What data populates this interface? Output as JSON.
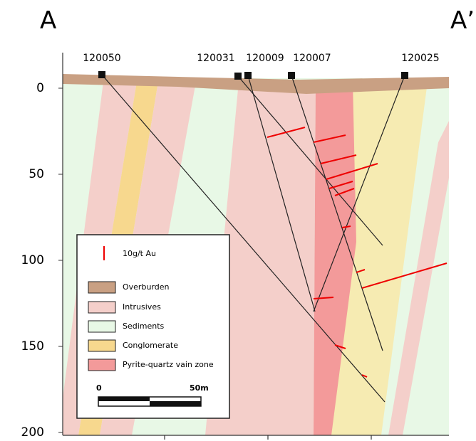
{
  "section": {
    "left_label": "A",
    "right_label": "A’"
  },
  "depth_axis": {
    "ticks": [
      "0",
      "50",
      "100",
      "150",
      "200"
    ]
  },
  "drill_holes": [
    {
      "name": "120050"
    },
    {
      "name": "120031"
    },
    {
      "name": "120009"
    },
    {
      "name": "120007"
    },
    {
      "name": "120025"
    }
  ],
  "legend": {
    "assay": "10g/t Au",
    "items": [
      {
        "label": "Overburden"
      },
      {
        "label": "Intrusives"
      },
      {
        "label": "Sediments"
      },
      {
        "label": "Conglomerate"
      },
      {
        "label": "Pyrite-quartz vain zone"
      }
    ],
    "scale": {
      "start": "0",
      "end": "50m"
    }
  }
}
